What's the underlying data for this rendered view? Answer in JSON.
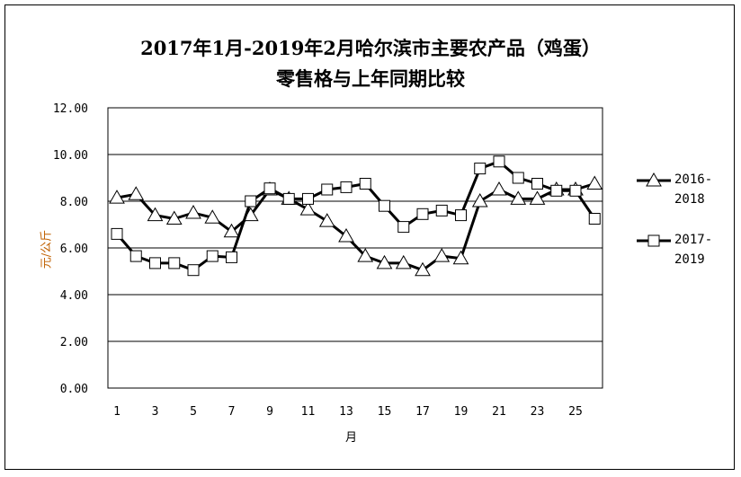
{
  "chart_data": {
    "type": "line",
    "title": "2017年1月-2019年2月哈尔滨市主要农产品（鸡蛋）",
    "subtitle": "零售格与上年同期比较",
    "xlabel": "月",
    "ylabel": "元/公斤",
    "ylim": [
      0,
      12
    ],
    "yticks": [
      "0.00",
      "2.00",
      "4.00",
      "6.00",
      "8.00",
      "10.00",
      "12.00"
    ],
    "xticks": [
      "1",
      "3",
      "5",
      "7",
      "9",
      "11",
      "13",
      "15",
      "17",
      "19",
      "21",
      "23",
      "25"
    ],
    "x": [
      1,
      2,
      3,
      4,
      5,
      6,
      7,
      8,
      9,
      10,
      11,
      12,
      13,
      14,
      15,
      16,
      17,
      18,
      19,
      20,
      21,
      22,
      23,
      24,
      25,
      26
    ],
    "grid": true,
    "legend_position": "right",
    "series": [
      {
        "name": "2016-2018",
        "name_lines": [
          "2016-",
          "2018"
        ],
        "marker": "triangle",
        "values": [
          8.15,
          8.3,
          7.4,
          7.25,
          7.5,
          7.3,
          6.7,
          7.4,
          8.5,
          8.1,
          7.65,
          7.15,
          6.5,
          5.65,
          5.35,
          5.35,
          5.05,
          5.65,
          5.55,
          8.0,
          8.5,
          8.1,
          8.1,
          8.5,
          8.5,
          8.75
        ]
      },
      {
        "name": "2017-2019",
        "name_lines": [
          "2017-",
          "2019"
        ],
        "marker": "square",
        "values": [
          6.6,
          5.65,
          5.35,
          5.35,
          5.05,
          5.65,
          5.6,
          8.0,
          8.55,
          8.1,
          8.1,
          8.5,
          8.6,
          8.75,
          7.8,
          6.9,
          7.45,
          7.6,
          7.4,
          9.4,
          9.7,
          9.0,
          8.75,
          8.45,
          8.45,
          7.25
        ]
      }
    ]
  }
}
